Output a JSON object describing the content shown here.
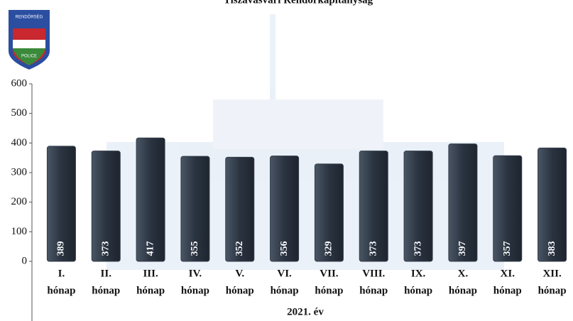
{
  "logo": {
    "top": "RENDŐRSÉG",
    "bottom": "POLICE"
  },
  "chart_data": {
    "type": "bar",
    "title": "Tiszavasvári Rendőrkapitányság",
    "categories": [
      [
        "I.",
        "hónap"
      ],
      [
        "II.",
        "hónap"
      ],
      [
        "III.",
        "hónap"
      ],
      [
        "IV.",
        "hónap"
      ],
      [
        "V.",
        "hónap"
      ],
      [
        "VI.",
        "hónap"
      ],
      [
        "VII.",
        "hónap"
      ],
      [
        "VIII.",
        "hónap"
      ],
      [
        "IX.",
        "hónap"
      ],
      [
        "X.",
        "hónap"
      ],
      [
        "XI.",
        "hónap"
      ],
      [
        "XII.",
        "hónap"
      ]
    ],
    "values": [
      389,
      373,
      417,
      355,
      352,
      356,
      329,
      373,
      373,
      397,
      357,
      383
    ],
    "color": "#323c4a",
    "x_label": "2021. év",
    "ylim": [
      0,
      600
    ],
    "yticks": [
      0,
      100,
      200,
      300,
      400,
      500,
      600
    ]
  }
}
